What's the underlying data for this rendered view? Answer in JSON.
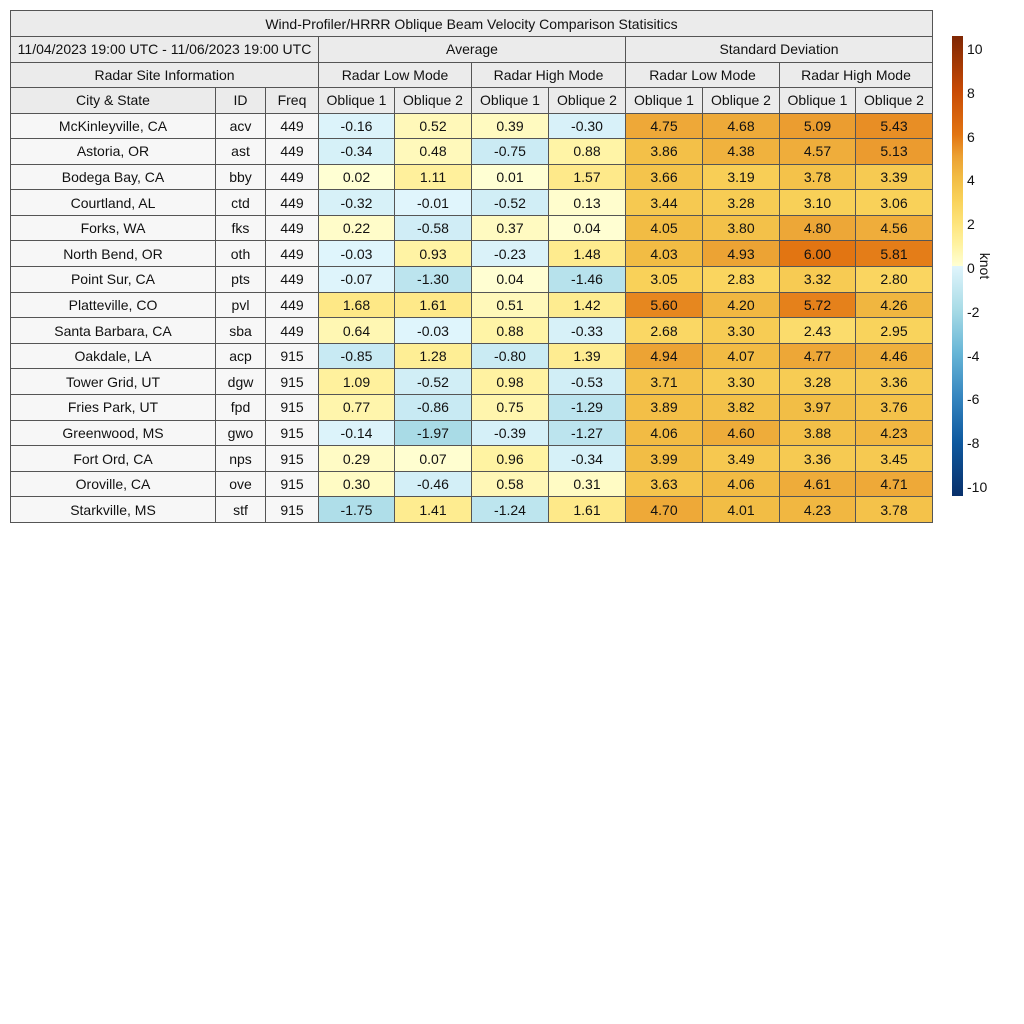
{
  "chart_data": {
    "type": "table",
    "title": "Wind-Profiler/HRRR Oblique Beam Velocity Comparison Statisitics",
    "date_range": "11/04/2023 19:00 UTC - 11/06/2023 19:00 UTC",
    "groups": [
      "Average",
      "Standard Deviation"
    ],
    "site_info_label": "Radar Site Information",
    "modes": [
      "Radar Low Mode",
      "Radar High Mode",
      "Radar Low Mode",
      "Radar High Mode"
    ],
    "columns": [
      "City & State",
      "ID",
      "Freq",
      "Oblique 1",
      "Oblique 2",
      "Oblique 1",
      "Oblique 2",
      "Oblique 1",
      "Oblique 2",
      "Oblique 1",
      "Oblique 2"
    ],
    "rows": [
      {
        "city": "McKinleyville, CA",
        "id": "acv",
        "freq": "449",
        "values": [
          "-0.16",
          "0.52",
          "0.39",
          "-0.30",
          "4.75",
          "4.68",
          "5.09",
          "5.43"
        ]
      },
      {
        "city": "Astoria, OR",
        "id": "ast",
        "freq": "449",
        "values": [
          "-0.34",
          "0.48",
          "-0.75",
          "0.88",
          "3.86",
          "4.38",
          "4.57",
          "5.13"
        ]
      },
      {
        "city": "Bodega Bay, CA",
        "id": "bby",
        "freq": "449",
        "values": [
          "0.02",
          "1.11",
          "0.01",
          "1.57",
          "3.66",
          "3.19",
          "3.78",
          "3.39"
        ]
      },
      {
        "city": "Courtland, AL",
        "id": "ctd",
        "freq": "449",
        "values": [
          "-0.32",
          "-0.01",
          "-0.52",
          "0.13",
          "3.44",
          "3.28",
          "3.10",
          "3.06"
        ]
      },
      {
        "city": "Forks, WA",
        "id": "fks",
        "freq": "449",
        "values": [
          "0.22",
          "-0.58",
          "0.37",
          "0.04",
          "4.05",
          "3.80",
          "4.80",
          "4.56"
        ]
      },
      {
        "city": "North Bend, OR",
        "id": "oth",
        "freq": "449",
        "values": [
          "-0.03",
          "0.93",
          "-0.23",
          "1.48",
          "4.03",
          "4.93",
          "6.00",
          "5.81"
        ]
      },
      {
        "city": "Point Sur, CA",
        "id": "pts",
        "freq": "449",
        "values": [
          "-0.07",
          "-1.30",
          "0.04",
          "-1.46",
          "3.05",
          "2.83",
          "3.32",
          "2.80"
        ]
      },
      {
        "city": "Platteville, CO",
        "id": "pvl",
        "freq": "449",
        "values": [
          "1.68",
          "1.61",
          "0.51",
          "1.42",
          "5.60",
          "4.20",
          "5.72",
          "4.26"
        ]
      },
      {
        "city": "Santa Barbara, CA",
        "id": "sba",
        "freq": "449",
        "values": [
          "0.64",
          "-0.03",
          "0.88",
          "-0.33",
          "2.68",
          "3.30",
          "2.43",
          "2.95"
        ]
      },
      {
        "city": "Oakdale, LA",
        "id": "acp",
        "freq": "915",
        "values": [
          "-0.85",
          "1.28",
          "-0.80",
          "1.39",
          "4.94",
          "4.07",
          "4.77",
          "4.46"
        ]
      },
      {
        "city": "Tower Grid, UT",
        "id": "dgw",
        "freq": "915",
        "values": [
          "1.09",
          "-0.52",
          "0.98",
          "-0.53",
          "3.71",
          "3.30",
          "3.28",
          "3.36"
        ]
      },
      {
        "city": "Fries Park, UT",
        "id": "fpd",
        "freq": "915",
        "values": [
          "0.77",
          "-0.86",
          "0.75",
          "-1.29",
          "3.89",
          "3.82",
          "3.97",
          "3.76"
        ]
      },
      {
        "city": "Greenwood, MS",
        "id": "gwo",
        "freq": "915",
        "values": [
          "-0.14",
          "-1.97",
          "-0.39",
          "-1.27",
          "4.06",
          "4.60",
          "3.88",
          "4.23"
        ]
      },
      {
        "city": "Fort Ord, CA",
        "id": "nps",
        "freq": "915",
        "values": [
          "0.29",
          "0.07",
          "0.96",
          "-0.34",
          "3.99",
          "3.49",
          "3.36",
          "3.45"
        ]
      },
      {
        "city": "Oroville, CA",
        "id": "ove",
        "freq": "915",
        "values": [
          "0.30",
          "-0.46",
          "0.58",
          "0.31",
          "3.63",
          "4.06",
          "4.61",
          "4.71"
        ]
      },
      {
        "city": "Starkville, MS",
        "id": "stf",
        "freq": "915",
        "values": [
          "-1.75",
          "1.41",
          "-1.24",
          "1.61",
          "4.70",
          "4.01",
          "4.23",
          "3.78"
        ]
      }
    ],
    "colorbar": {
      "label": "knot",
      "range": [
        -10.5,
        10.5
      ],
      "ticks": [
        "10",
        "8",
        "6",
        "4",
        "2",
        "0",
        "-2",
        "-4",
        "-6",
        "-8",
        "-10"
      ],
      "colormap": [
        {
          "v": -10.5,
          "c": "#08306b"
        },
        {
          "v": -8,
          "c": "#0f5aa0"
        },
        {
          "v": -6,
          "c": "#3585bf"
        },
        {
          "v": -4,
          "c": "#66b5d6"
        },
        {
          "v": -2,
          "c": "#a8dbe6"
        },
        {
          "v": 0,
          "c": "#e0f5fc"
        },
        {
          "v": 0.0001,
          "c": "#ffffd4"
        },
        {
          "v": 1,
          "c": "#fff2a0"
        },
        {
          "v": 2,
          "c": "#fde37a"
        },
        {
          "v": 3,
          "c": "#f9d25a"
        },
        {
          "v": 4,
          "c": "#f2bd45"
        },
        {
          "v": 5,
          "c": "#eca133"
        },
        {
          "v": 6,
          "c": "#e27512"
        },
        {
          "v": 8,
          "c": "#c84a05"
        },
        {
          "v": 10.5,
          "c": "#7f2704"
        }
      ]
    }
  }
}
